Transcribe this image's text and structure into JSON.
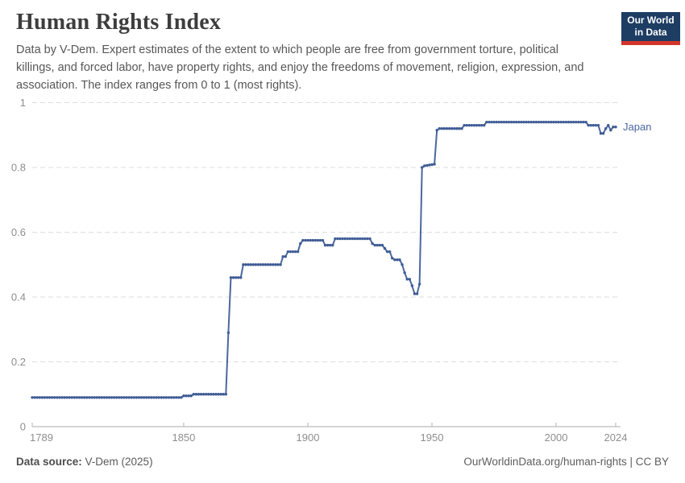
{
  "header": {
    "title": "Human Rights Index",
    "subtitle": "Data by V-Dem. Expert estimates of the extent to which people are free from government torture, political killings, and forced labor, have property rights, and enjoy the freedoms of movement, religion, expression, and association. The index ranges from 0 to 1 (most rights).",
    "logo": {
      "line1": "Our World",
      "line2": "in Data",
      "bg_color": "#1d3d63",
      "bar_color": "#d2352b"
    }
  },
  "chart_data": {
    "type": "line",
    "title": "Human Rights Index",
    "xlabel": "",
    "ylabel": "",
    "xlim": [
      1789,
      2026
    ],
    "ylim": [
      0,
      1
    ],
    "grid": "horizontal-dashed",
    "legend_position": "end-of-line-label",
    "x_ticks": [
      1789,
      1850,
      1900,
      1950,
      2000,
      2024
    ],
    "x_tick_labels": [
      "1789",
      "1850",
      "1900",
      "1950",
      "2000",
      "2024"
    ],
    "y_ticks": [
      0,
      0.2,
      0.4,
      0.6,
      0.8,
      1
    ],
    "y_tick_labels": [
      "0",
      "0.2",
      "0.4",
      "0.6",
      "0.8",
      "1"
    ],
    "series": [
      {
        "name": "Japan",
        "end_label": "Japan",
        "color": "#4a67a0",
        "marker_color": "#3f5c95",
        "markers_every_year": true,
        "points": [
          [
            1789,
            0.09
          ],
          [
            1849,
            0.09
          ],
          [
            1850,
            0.095
          ],
          [
            1853,
            0.095
          ],
          [
            1854,
            0.1
          ],
          [
            1867,
            0.1
          ],
          [
            1868,
            0.29
          ],
          [
            1869,
            0.46
          ],
          [
            1873,
            0.46
          ],
          [
            1874,
            0.5
          ],
          [
            1889,
            0.5
          ],
          [
            1890,
            0.525
          ],
          [
            1891,
            0.525
          ],
          [
            1892,
            0.54
          ],
          [
            1896,
            0.54
          ],
          [
            1897,
            0.565
          ],
          [
            1898,
            0.575
          ],
          [
            1906,
            0.575
          ],
          [
            1907,
            0.56
          ],
          [
            1910,
            0.56
          ],
          [
            1911,
            0.58
          ],
          [
            1925,
            0.58
          ],
          [
            1926,
            0.565
          ],
          [
            1927,
            0.56
          ],
          [
            1930,
            0.56
          ],
          [
            1931,
            0.55
          ],
          [
            1932,
            0.54
          ],
          [
            1933,
            0.54
          ],
          [
            1934,
            0.52
          ],
          [
            1935,
            0.515
          ],
          [
            1937,
            0.515
          ],
          [
            1938,
            0.5
          ],
          [
            1939,
            0.475
          ],
          [
            1940,
            0.455
          ],
          [
            1941,
            0.455
          ],
          [
            1942,
            0.435
          ],
          [
            1943,
            0.41
          ],
          [
            1944,
            0.41
          ],
          [
            1945,
            0.44
          ],
          [
            1946,
            0.8
          ],
          [
            1947,
            0.805
          ],
          [
            1951,
            0.81
          ],
          [
            1952,
            0.915
          ],
          [
            1953,
            0.92
          ],
          [
            1962,
            0.92
          ],
          [
            1963,
            0.93
          ],
          [
            1971,
            0.93
          ],
          [
            1972,
            0.94
          ],
          [
            2012,
            0.94
          ],
          [
            2013,
            0.93
          ],
          [
            2017,
            0.93
          ],
          [
            2018,
            0.905
          ],
          [
            2019,
            0.905
          ],
          [
            2020,
            0.92
          ],
          [
            2021,
            0.93
          ],
          [
            2022,
            0.915
          ],
          [
            2023,
            0.925
          ],
          [
            2024,
            0.925
          ]
        ]
      }
    ]
  },
  "footer": {
    "source_label": "Data source:",
    "source_value": " V-Dem (2025)",
    "right_text": "OurWorldinData.org/human-rights | CC BY"
  }
}
